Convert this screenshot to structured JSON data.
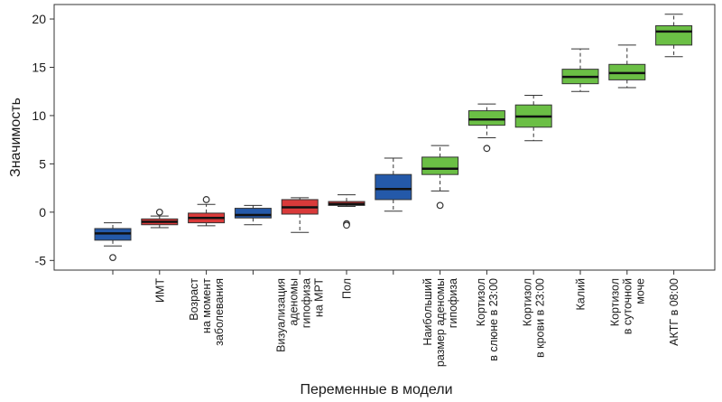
{
  "chart_data": {
    "type": "boxplot",
    "title": "",
    "xlabel": "Переменные в модели",
    "ylabel": "Значимость",
    "ylim": [
      -6,
      21.5
    ],
    "yticks": [
      -5,
      0,
      5,
      10,
      15,
      20
    ],
    "ytick_labels": [
      "-5",
      "0",
      "5",
      "10",
      "15",
      "20"
    ],
    "colors": {
      "blue": "#2459a9",
      "red": "#d93a3a",
      "green": "#6bbf45"
    },
    "boxes": [
      {
        "label": [
          ""
        ],
        "color": "blue",
        "min": -3.5,
        "q1": -2.9,
        "median": -2.2,
        "q3": -1.7,
        "max": -1.1,
        "outliers": [
          -4.7
        ]
      },
      {
        "label": [
          "ИМТ"
        ],
        "color": "red",
        "min": -1.6,
        "q1": -1.3,
        "median": -1.0,
        "q3": -0.7,
        "max": -0.4,
        "outliers": [
          0.0
        ]
      },
      {
        "label": [
          "Возраст",
          "на момент",
          "заболевания"
        ],
        "color": "red",
        "min": -1.4,
        "q1": -1.1,
        "median": -0.6,
        "q3": -0.1,
        "max": 0.8,
        "outliers": [
          1.3
        ]
      },
      {
        "label": [
          ""
        ],
        "color": "blue",
        "min": -1.3,
        "q1": -0.6,
        "median": -0.3,
        "q3": 0.4,
        "max": 0.7,
        "outliers": []
      },
      {
        "label": [
          "Визуализация",
          "аденомы",
          "гипофиза",
          "на МРТ"
        ],
        "color": "red",
        "min": -2.1,
        "q1": -0.2,
        "median": 0.5,
        "q3": 1.3,
        "max": 1.5,
        "outliers": []
      },
      {
        "label": [
          "Пол"
        ],
        "color": "red",
        "min": 0.6,
        "q1": 0.7,
        "median": 0.85,
        "q3": 1.1,
        "max": 1.8,
        "outliers": [
          -1.2,
          -1.35
        ]
      },
      {
        "label": [
          ""
        ],
        "color": "blue",
        "min": 0.1,
        "q1": 1.3,
        "median": 2.4,
        "q3": 3.9,
        "max": 5.6,
        "outliers": []
      },
      {
        "label": [
          "Наибольший",
          "размер аденомы",
          "гипофиза"
        ],
        "color": "green",
        "min": 2.2,
        "q1": 3.9,
        "median": 4.5,
        "q3": 5.7,
        "max": 6.9,
        "outliers": [
          0.7
        ]
      },
      {
        "label": [
          "Кортизол",
          "в слюне в 23:00"
        ],
        "color": "green",
        "min": 7.7,
        "q1": 9.0,
        "median": 9.6,
        "q3": 10.5,
        "max": 11.2,
        "outliers": [
          6.6
        ]
      },
      {
        "label": [
          "Кортизол",
          "в крови в 23:00"
        ],
        "color": "green",
        "min": 7.4,
        "q1": 8.8,
        "median": 9.9,
        "q3": 11.1,
        "max": 12.1,
        "outliers": []
      },
      {
        "label": [
          "Калий"
        ],
        "color": "green",
        "min": 12.5,
        "q1": 13.3,
        "median": 14.0,
        "q3": 14.8,
        "max": 16.9,
        "outliers": []
      },
      {
        "label": [
          "Кортизол",
          "в суточной",
          "моче"
        ],
        "color": "green",
        "min": 12.9,
        "q1": 13.7,
        "median": 14.4,
        "q3": 15.3,
        "max": 17.3,
        "outliers": []
      },
      {
        "label": [
          "АКТГ в 08:00"
        ],
        "color": "green",
        "min": 16.1,
        "q1": 17.3,
        "median": 18.7,
        "q3": 19.3,
        "max": 20.5,
        "outliers": []
      }
    ]
  }
}
